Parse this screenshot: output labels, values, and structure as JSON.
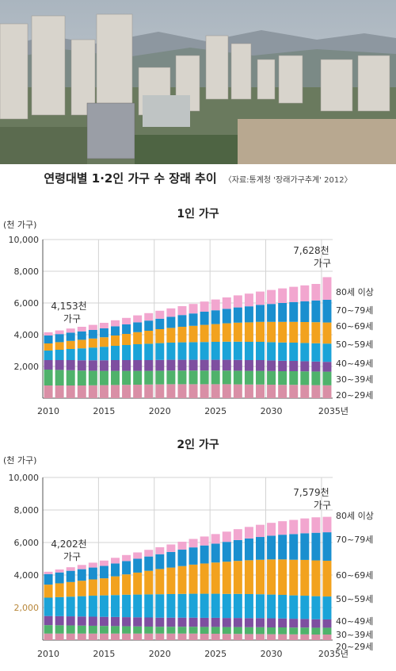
{
  "header": {
    "title": "연령대별 1·2인 가구 수 장래 추이",
    "source": "〈자료:통계청 '장래가구추계' 2012〉"
  },
  "colors": {
    "20-29": "#d98fa6",
    "30-39": "#4fb26b",
    "40-49": "#7e4fa0",
    "50-59": "#1ba3d8",
    "60-69": "#f2a21e",
    "70-79": "#1a8fcf",
    "80+": "#f2a6cf",
    "grid": "#d3d3d3",
    "axis": "#555555",
    "highlight_tick": "#b8873a"
  },
  "chart_data": [
    {
      "type": "bar",
      "stacked": true,
      "title": "1인 가구",
      "ylabel": "(천 가구)",
      "ylim": [
        0,
        10000
      ],
      "yticks": [
        "10,000",
        "8,000",
        "6,000",
        "4,000",
        "2,000"
      ],
      "ytick_values": [
        10000,
        8000,
        6000,
        4000,
        2000
      ],
      "x": [
        2010,
        2011,
        2012,
        2013,
        2014,
        2015,
        2016,
        2017,
        2018,
        2019,
        2020,
        2021,
        2022,
        2023,
        2024,
        2025,
        2026,
        2027,
        2028,
        2029,
        2030,
        2031,
        2032,
        2033,
        2034,
        2035
      ],
      "xtick_labels": [
        "2010",
        "2015",
        "2020",
        "2025",
        "2030",
        "2035년"
      ],
      "xtick_values": [
        2010,
        2015,
        2020,
        2025,
        2030,
        2035
      ],
      "series_labels": [
        "20~29세",
        "30~39세",
        "40~49세",
        "50~59세",
        "60~69세",
        "70~79세",
        "80세 이상"
      ],
      "series": [
        {
          "key": "20-29",
          "values": [
            800,
            800,
            800,
            800,
            810,
            820,
            830,
            840,
            850,
            860,
            870,
            880,
            880,
            880,
            880,
            880,
            880,
            870,
            860,
            860,
            850,
            840,
            840,
            830,
            820,
            810
          ]
        },
        {
          "key": "30-39",
          "values": [
            1000,
            980,
            960,
            940,
            920,
            900,
            890,
            880,
            870,
            860,
            860,
            860,
            860,
            860,
            860,
            860,
            860,
            860,
            860,
            860,
            860,
            860,
            860,
            860,
            860,
            860
          ]
        },
        {
          "key": "40-49",
          "values": [
            600,
            620,
            640,
            650,
            660,
            670,
            680,
            680,
            680,
            680,
            680,
            680,
            680,
            680,
            680,
            680,
            680,
            680,
            680,
            680,
            670,
            660,
            650,
            640,
            630,
            620
          ]
        },
        {
          "key": "50-59",
          "values": [
            600,
            650,
            700,
            750,
            800,
            850,
            900,
            950,
            1000,
            1030,
            1060,
            1080,
            1100,
            1110,
            1120,
            1130,
            1140,
            1150,
            1150,
            1150,
            1150,
            1150,
            1150,
            1150,
            1150,
            1150
          ]
        },
        {
          "key": "60-69",
          "values": [
            450,
            480,
            510,
            540,
            570,
            600,
            650,
            700,
            760,
            820,
            880,
            930,
            980,
            1030,
            1080,
            1120,
            1160,
            1200,
            1230,
            1260,
            1280,
            1300,
            1310,
            1320,
            1330,
            1330
          ]
        },
        {
          "key": "70-79",
          "values": [
            500,
            510,
            520,
            530,
            540,
            560,
            580,
            600,
            620,
            640,
            660,
            700,
            740,
            780,
            830,
            870,
            910,
            960,
            1010,
            1070,
            1130,
            1190,
            1250,
            1310,
            1370,
            1430
          ]
        },
        {
          "key": "80+",
          "values": [
            203,
            230,
            260,
            290,
            320,
            350,
            380,
            410,
            440,
            470,
            500,
            530,
            560,
            600,
            640,
            680,
            720,
            760,
            800,
            840,
            880,
            920,
            960,
            1000,
            1040,
            1428
          ]
        }
      ],
      "annotations": [
        {
          "x": 2010,
          "line1": "4,153천",
          "line2": "가구"
        },
        {
          "x": 2035,
          "line1": "7,628천",
          "line2": "가구"
        }
      ]
    },
    {
      "type": "bar",
      "stacked": true,
      "title": "2인 가구",
      "ylabel": "(천 가구)",
      "ylim": [
        0,
        10000
      ],
      "yticks": [
        "10,000",
        "8,000",
        "6,000",
        "4,000",
        "2,000"
      ],
      "ytick_values": [
        10000,
        8000,
        6000,
        4000,
        2000
      ],
      "x": [
        2010,
        2011,
        2012,
        2013,
        2014,
        2015,
        2016,
        2017,
        2018,
        2019,
        2020,
        2021,
        2022,
        2023,
        2024,
        2025,
        2026,
        2027,
        2028,
        2029,
        2030,
        2031,
        2032,
        2033,
        2034,
        2035
      ],
      "xtick_labels": [
        "2010",
        "2015",
        "2020",
        "2025",
        "2030",
        "2035년"
      ],
      "xtick_values": [
        2010,
        2015,
        2020,
        2025,
        2030,
        2035
      ],
      "series_labels": [
        "20~29세",
        "30~39세",
        "40~49세",
        "50~59세",
        "60~69세",
        "70~79세",
        "80세 이상"
      ],
      "series": [
        {
          "key": "20-29",
          "values": [
            400,
            400,
            400,
            400,
            400,
            400,
            400,
            400,
            400,
            400,
            400,
            400,
            400,
            400,
            390,
            390,
            380,
            380,
            370,
            370,
            360,
            360,
            350,
            350,
            340,
            340
          ]
        },
        {
          "key": "30-39",
          "values": [
            520,
            510,
            500,
            490,
            480,
            470,
            460,
            450,
            440,
            430,
            420,
            420,
            420,
            420,
            420,
            420,
            420,
            420,
            420,
            420,
            420,
            420,
            420,
            420,
            420,
            420
          ]
        },
        {
          "key": "40-49",
          "values": [
            560,
            560,
            560,
            560,
            560,
            560,
            560,
            560,
            560,
            560,
            560,
            560,
            560,
            560,
            560,
            560,
            560,
            560,
            560,
            560,
            560,
            550,
            540,
            530,
            520,
            510
          ]
        },
        {
          "key": "50-59",
          "values": [
            1130,
            1170,
            1210,
            1250,
            1290,
            1320,
            1350,
            1380,
            1400,
            1420,
            1440,
            1450,
            1460,
            1470,
            1480,
            1480,
            1480,
            1480,
            1480,
            1470,
            1460,
            1450,
            1440,
            1430,
            1420,
            1410
          ]
        },
        {
          "key": "60-69",
          "values": [
            800,
            850,
            900,
            950,
            1000,
            1050,
            1150,
            1250,
            1350,
            1450,
            1550,
            1630,
            1710,
            1790,
            1860,
            1920,
            1980,
            2030,
            2080,
            2120,
            2160,
            2180,
            2190,
            2200,
            2200,
            2200
          ]
        },
        {
          "key": "70-79",
          "values": [
            650,
            670,
            690,
            710,
            730,
            760,
            790,
            820,
            850,
            880,
            910,
            960,
            1010,
            1060,
            1110,
            1160,
            1220,
            1280,
            1340,
            1400,
            1460,
            1520,
            1580,
            1640,
            1700,
            1750
          ]
        },
        {
          "key": "80+",
          "values": [
            142,
            180,
            220,
            260,
            300,
            330,
            350,
            370,
            390,
            410,
            430,
            460,
            490,
            520,
            550,
            590,
            630,
            670,
            710,
            750,
            790,
            830,
            870,
            910,
            950,
            949
          ]
        }
      ],
      "annotations": [
        {
          "x": 2010,
          "line1": "4,202천",
          "line2": "가구"
        },
        {
          "x": 2035,
          "line1": "7,579천",
          "line2": "가구"
        }
      ]
    }
  ]
}
